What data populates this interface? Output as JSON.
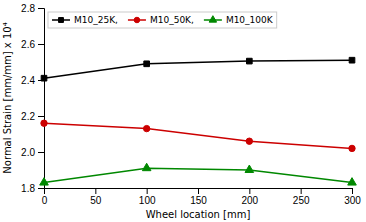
{
  "chart_data": {
    "type": "line",
    "x_label": "Wheel location [mm]",
    "y_label": "Normal Strain [mm/mm] x 10⁴",
    "x": [
      0,
      100,
      200,
      300
    ],
    "series": [
      {
        "name": "M10_25K,",
        "color": "#000000",
        "marker": "square",
        "values": [
          2.41,
          2.49,
          2.505,
          2.51
        ]
      },
      {
        "name": "M10_50K,",
        "color": "#cc0000",
        "marker": "circle",
        "values": [
          2.16,
          2.13,
          2.06,
          2.02
        ]
      },
      {
        "name": "M10_100K",
        "color": "#008800",
        "marker": "triangle",
        "values": [
          1.83,
          1.91,
          1.9,
          1.83
        ]
      }
    ],
    "xlim": [
      0,
      300
    ],
    "ylim": [
      1.8,
      2.8
    ],
    "xticks": [
      0,
      50,
      100,
      150,
      200,
      250,
      300
    ],
    "yticks": [
      1.8,
      {
        "value": 2.0,
        "label": "2.0"
      },
      2.2,
      2.4,
      2.6,
      2.8
    ],
    "grid": false,
    "legend": "upper left"
  }
}
